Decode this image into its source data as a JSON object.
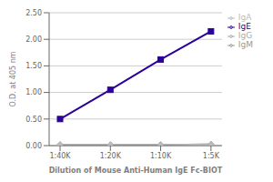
{
  "chart_data": {
    "type": "line",
    "categories": [
      "1:40K",
      "1:20K",
      "1:10K",
      "1:5K"
    ],
    "series": [
      {
        "name": "IgG",
        "color": "#aaaaaa",
        "marker": "diamond",
        "values": [
          0.02,
          0.02,
          0.02,
          0.03
        ]
      },
      {
        "name": "IgM",
        "color": "#999999",
        "marker": "diamond",
        "values": [
          0.02,
          0.02,
          0.02,
          0.03
        ]
      },
      {
        "name": "IgA",
        "color": "#bbbbbb",
        "marker": "diamond",
        "values": [
          0.02,
          0.02,
          0.02,
          0.03
        ]
      },
      {
        "name": "IgE",
        "color": "#2b0099",
        "marker": "square",
        "values": [
          0.5,
          1.05,
          1.62,
          2.15
        ]
      }
    ],
    "x_label": "Dilution of Mouse Anti-Human IgE Fc-BIOT",
    "y_label": "O.D. at 405 nm",
    "ylim": [
      0.0,
      2.5
    ],
    "yticks": [
      {
        "value": 0.0,
        "label": "0.00"
      },
      {
        "value": 0.5,
        "label": "0.50"
      },
      {
        "value": 1.0,
        "label": "1.00"
      },
      {
        "value": 1.5,
        "label": "1.50"
      },
      {
        "value": 2.0,
        "label": "2.00"
      },
      {
        "value": 2.5,
        "label": "2.50"
      }
    ],
    "grid": true,
    "legend": "right"
  }
}
